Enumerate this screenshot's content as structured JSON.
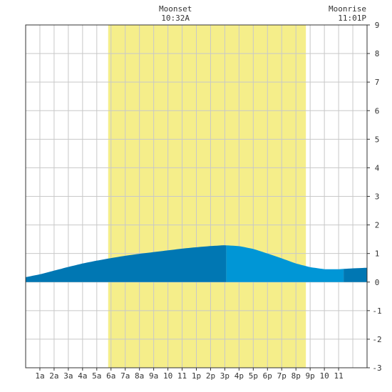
{
  "chart_data": {
    "type": "area",
    "title": "",
    "xlabel": "",
    "ylabel": "",
    "xlim": [
      0,
      24
    ],
    "ylim": [
      -3,
      9
    ],
    "grid": true,
    "x_tick_labels": [
      "1a",
      "2a",
      "3a",
      "4a",
      "5a",
      "6a",
      "7a",
      "8a",
      "9a",
      "10",
      "11",
      "1p",
      "2p",
      "3p",
      "4p",
      "5p",
      "6p",
      "7p",
      "8p",
      "9p",
      "10",
      "11"
    ],
    "y_ticks": [
      -3,
      -2,
      -1,
      0,
      1,
      2,
      3,
      4,
      5,
      6,
      7,
      8,
      9
    ],
    "daylight": {
      "start_hour": 5.8,
      "end_hour": 19.7,
      "color": "#f5ee8a"
    },
    "moon_events": [
      {
        "label": "Moonset",
        "time": "10:32A",
        "hour": 10.53
      },
      {
        "label": "Moonrise",
        "time": "11:01P",
        "hour": 23.02
      }
    ],
    "tide_color_dark": "#0077b3",
    "tide_color_light": "#0096d6",
    "tide_segments_hours": [
      0,
      14.1,
      22.35,
      24
    ],
    "tide_series": {
      "name": "",
      "x": [
        0,
        1,
        2,
        3,
        4,
        5,
        6,
        7,
        8,
        9,
        10,
        11,
        12,
        13,
        14,
        15,
        16,
        17,
        18,
        19,
        20,
        21,
        22,
        23,
        24
      ],
      "y": [
        0.17,
        0.27,
        0.4,
        0.53,
        0.65,
        0.75,
        0.84,
        0.92,
        0.99,
        1.05,
        1.11,
        1.17,
        1.22,
        1.26,
        1.29,
        1.26,
        1.16,
        1.0,
        0.83,
        0.65,
        0.52,
        0.45,
        0.45,
        0.48,
        0.5
      ]
    }
  }
}
